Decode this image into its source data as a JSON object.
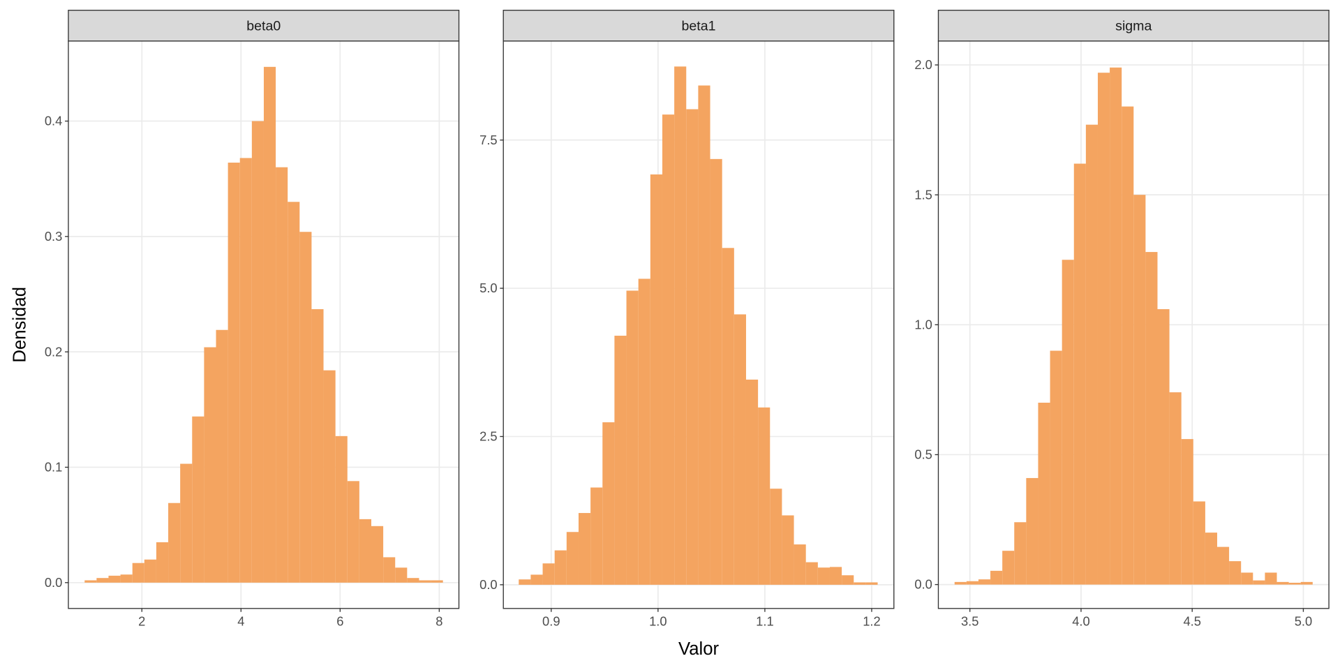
{
  "chart_data": [
    {
      "type": "histogram",
      "title": "beta0",
      "y_label": "Densidad",
      "color": "#f4a460",
      "grid": true,
      "bins": [
        0.845,
        1.086,
        1.327,
        1.568,
        1.809,
        2.05,
        2.291,
        2.532,
        2.773,
        3.014,
        3.255,
        3.496,
        3.737,
        3.978,
        4.219,
        4.46,
        4.701,
        4.942,
        5.183,
        5.424,
        5.665,
        5.906,
        6.147,
        6.388,
        6.629,
        6.87,
        7.111,
        7.352,
        7.593,
        7.834,
        8.075
      ],
      "values": [
        0.002,
        0.004,
        0.006,
        0.007,
        0.017,
        0.02,
        0.035,
        0.069,
        0.103,
        0.144,
        0.204,
        0.219,
        0.364,
        0.368,
        0.4,
        0.447,
        0.36,
        0.33,
        0.304,
        0.237,
        0.184,
        0.127,
        0.088,
        0.055,
        0.049,
        0.022,
        0.013,
        0.004,
        0.002,
        0.002
      ],
      "xlim": [
        0.517,
        8.397
      ],
      "ylim": [
        -0.0224,
        0.4694
      ],
      "xticks": [
        2,
        4,
        6,
        8
      ],
      "yticks": [
        {
          "value": 0,
          "label": "0.0"
        },
        0.1,
        0.2,
        0.3,
        0.4
      ]
    },
    {
      "type": "histogram",
      "title": "beta1",
      "x_label": "Valor",
      "color": "#f4a460",
      "grid": true,
      "bins": [
        0.8696,
        0.8808,
        0.892,
        0.9032,
        0.9144,
        0.9256,
        0.9368,
        0.948,
        0.9592,
        0.9704,
        0.9816,
        0.9928,
        1.004,
        1.0152,
        1.0264,
        1.0376,
        1.0488,
        1.06,
        1.0712,
        1.0824,
        1.0936,
        1.1048,
        1.116,
        1.1272,
        1.1384,
        1.1496,
        1.1608,
        1.172,
        1.1832,
        1.1944,
        1.2056
      ],
      "values": [
        0.09,
        0.17,
        0.36,
        0.58,
        0.89,
        1.21,
        1.64,
        2.74,
        4.2,
        4.96,
        5.16,
        6.92,
        7.93,
        8.74,
        8.02,
        8.42,
        7.18,
        5.68,
        4.56,
        3.46,
        2.99,
        1.62,
        1.17,
        0.68,
        0.38,
        0.29,
        0.3,
        0.16,
        0.04,
        0.04
      ],
      "xlim": [
        0.8552,
        1.2208
      ],
      "ylim": [
        -0.4,
        9.17
      ],
      "xticks": [
        0.9,
        {
          "value": 1,
          "label": "1.0"
        },
        1.1,
        1.2
      ],
      "yticks": [
        {
          "value": 0,
          "label": "0.0"
        },
        2.5,
        {
          "value": 5,
          "label": "5.0"
        },
        7.5
      ]
    },
    {
      "type": "histogram",
      "title": "sigma",
      "color": "#f4a460",
      "grid": true,
      "bins": [
        3.431,
        3.4847,
        3.5384,
        3.5921,
        3.6458,
        3.6995,
        3.7532,
        3.8069,
        3.8606,
        3.9143,
        3.968,
        4.0217,
        4.0754,
        4.1291,
        4.1828,
        4.2365,
        4.2902,
        4.3439,
        4.3976,
        4.4513,
        4.505,
        4.5587,
        4.6124,
        4.6661,
        4.7198,
        4.7735,
        4.8272,
        4.8809,
        4.9346,
        4.9883,
        5.042
      ],
      "values": [
        0.01,
        0.013,
        0.02,
        0.053,
        0.13,
        0.24,
        0.41,
        0.7,
        0.9,
        1.25,
        1.62,
        1.77,
        1.97,
        1.99,
        1.84,
        1.5,
        1.28,
        1.06,
        0.74,
        0.56,
        0.32,
        0.2,
        0.145,
        0.09,
        0.046,
        0.016,
        0.046,
        0.01,
        0.007,
        0.01
      ],
      "xlim": [
        3.358,
        5.115
      ],
      "ylim": [
        -0.092,
        2.092
      ],
      "xticks": [
        3.5,
        {
          "value": 4,
          "label": "4.0"
        },
        4.5,
        {
          "value": 5,
          "label": "5.0"
        }
      ],
      "yticks": [
        {
          "value": 0,
          "label": "0.0"
        },
        0.5,
        {
          "value": 1,
          "label": "1.0"
        },
        1.5,
        {
          "value": 2,
          "label": "2.0"
        }
      ]
    }
  ]
}
